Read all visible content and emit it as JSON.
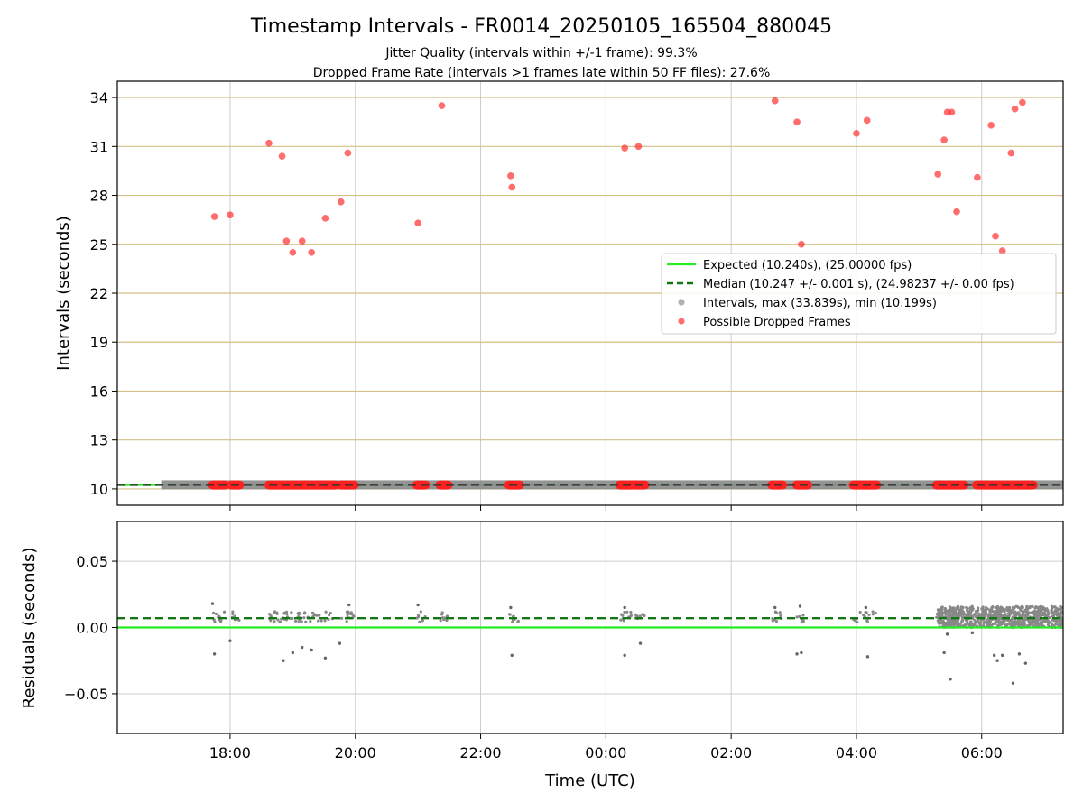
{
  "chart_data": [
    {
      "type": "scatter",
      "title": "Timestamp Intervals - FR0014_20250105_165504_880045",
      "subtitle_lines": [
        "Jitter Quality (intervals within +/-1 frame): 99.3%",
        "Dropped Frame Rate (intervals >1 frames late within 50 FF files): 27.6%"
      ],
      "ylabel": "Intervals (seconds)",
      "x_axis_hours": [
        16.2,
        31.3
      ],
      "ylim": [
        9.0,
        35.0
      ],
      "y_ticks": [
        10,
        13,
        16,
        19,
        22,
        25,
        28,
        31,
        34
      ],
      "y_tick_labels": [
        "10",
        "13",
        "16",
        "19",
        "22",
        "25",
        "28",
        "31",
        "34"
      ],
      "x_ticks_hours": [
        18,
        20,
        22,
        24,
        26,
        28,
        30
      ],
      "grid": true,
      "legend_position": "center-right",
      "colors": {
        "expected": "#22ee22",
        "median": "#137813",
        "intervals": "#888888",
        "dropped": "#ff2020",
        "hgrid": "#d4c084",
        "vgrid": "#cccccc"
      },
      "series": [
        {
          "name": "Expected (10.240s), (25.00000 fps)",
          "kind": "hline",
          "y": 10.24
        },
        {
          "name": "Median (10.247 +/- 0.001 s), (24.98237 +/- 0.00 fps)",
          "kind": "dashed-hline",
          "y": 10.247
        },
        {
          "name": "Intervals, max (33.839s), min (10.199s)",
          "kind": "band",
          "x_range": [
            16.9,
            31.3
          ],
          "y": 10.25
        },
        {
          "name": "Possible Dropped Frames",
          "kind": "scatter",
          "points": [
            [
              17.75,
              26.7
            ],
            [
              18.0,
              26.8
            ],
            [
              18.62,
              31.2
            ],
            [
              18.83,
              30.4
            ],
            [
              18.9,
              25.2
            ],
            [
              19.0,
              24.5
            ],
            [
              19.15,
              25.2
            ],
            [
              19.3,
              24.5
            ],
            [
              19.52,
              26.6
            ],
            [
              19.77,
              27.6
            ],
            [
              19.88,
              30.6
            ],
            [
              21.0,
              26.3
            ],
            [
              21.38,
              33.5
            ],
            [
              22.48,
              29.2
            ],
            [
              22.5,
              28.5
            ],
            [
              24.3,
              30.9
            ],
            [
              24.52,
              31.0
            ],
            [
              26.7,
              33.8
            ],
            [
              27.05,
              32.5
            ],
            [
              27.12,
              25.0
            ],
            [
              28.0,
              31.8
            ],
            [
              28.17,
              32.6
            ],
            [
              29.3,
              29.3
            ],
            [
              29.4,
              31.4
            ],
            [
              29.45,
              33.1
            ],
            [
              29.52,
              33.1
            ],
            [
              29.6,
              27.0
            ],
            [
              29.93,
              29.1
            ],
            [
              30.15,
              32.3
            ],
            [
              30.22,
              25.5
            ],
            [
              30.33,
              24.6
            ],
            [
              30.47,
              30.6
            ],
            [
              30.53,
              33.3
            ],
            [
              30.65,
              33.7
            ]
          ],
          "baseline_clusters_hours": [
            [
              17.72,
              17.92
            ],
            [
              18.02,
              18.15
            ],
            [
              18.62,
              19.68
            ],
            [
              19.77,
              19.98
            ],
            [
              20.98,
              21.12
            ],
            [
              21.35,
              21.48
            ],
            [
              22.45,
              22.62
            ],
            [
              24.22,
              24.42
            ],
            [
              24.45,
              24.62
            ],
            [
              26.65,
              26.82
            ],
            [
              27.05,
              27.22
            ],
            [
              27.95,
              28.32
            ],
            [
              29.28,
              29.72
            ],
            [
              29.92,
              30.82
            ]
          ]
        }
      ]
    },
    {
      "type": "scatter",
      "xlabel": "Time (UTC)",
      "ylabel": "Residuals (seconds)",
      "ylim": [
        -0.08,
        0.08
      ],
      "y_ticks": [
        -0.05,
        0.0,
        0.05
      ],
      "y_tick_labels": [
        "−0.05",
        "0.00",
        "0.05"
      ],
      "x_ticks_hours": [
        18,
        20,
        22,
        24,
        26,
        28,
        30
      ],
      "x_tick_labels": [
        "18:00",
        "20:00",
        "22:00",
        "00:00",
        "02:00",
        "04:00",
        "06:00"
      ],
      "grid": true,
      "series": [
        {
          "kind": "hline",
          "y": 0.0
        },
        {
          "kind": "dashed-hline",
          "y": 0.007
        },
        {
          "kind": "scatter",
          "band_y": [
            0.0,
            0.016
          ],
          "dense_from_hours": 29.3,
          "outliers": [
            [
              17.75,
              -0.02
            ],
            [
              18.0,
              -0.01
            ],
            [
              18.85,
              -0.025
            ],
            [
              19.0,
              -0.019
            ],
            [
              19.15,
              -0.015
            ],
            [
              19.3,
              -0.017
            ],
            [
              19.52,
              -0.023
            ],
            [
              19.75,
              -0.012
            ],
            [
              22.5,
              -0.021
            ],
            [
              24.3,
              -0.021
            ],
            [
              24.55,
              -0.012
            ],
            [
              27.05,
              -0.02
            ],
            [
              27.12,
              -0.019
            ],
            [
              28.18,
              -0.022
            ],
            [
              29.4,
              -0.019
            ],
            [
              29.45,
              -0.005
            ],
            [
              29.5,
              -0.039
            ],
            [
              29.85,
              -0.004
            ],
            [
              30.2,
              -0.021
            ],
            [
              30.25,
              -0.025
            ],
            [
              30.33,
              -0.021
            ],
            [
              30.5,
              -0.042
            ],
            [
              30.6,
              -0.02
            ],
            [
              30.7,
              -0.027
            ]
          ],
          "top_outliers": [
            [
              17.72,
              0.018
            ],
            [
              21.0,
              0.017
            ],
            [
              22.48,
              0.015
            ],
            [
              24.3,
              0.015
            ],
            [
              26.7,
              0.015
            ],
            [
              27.1,
              0.016
            ],
            [
              28.15,
              0.015
            ],
            [
              19.9,
              0.017
            ]
          ]
        }
      ]
    }
  ],
  "legend_items": [
    {
      "label": "Expected (10.240s), (25.00000 fps)",
      "kind": "solid",
      "color": "#22ee22"
    },
    {
      "label": "Median (10.247 +/- 0.001 s), (24.98237 +/- 0.00 fps)",
      "kind": "dashed",
      "color": "#137813"
    },
    {
      "label": "Intervals, max (33.839s), min (10.199s)",
      "kind": "dot",
      "color": "#888888"
    },
    {
      "label": "Possible Dropped Frames",
      "kind": "dot",
      "color": "#ff2020"
    }
  ]
}
